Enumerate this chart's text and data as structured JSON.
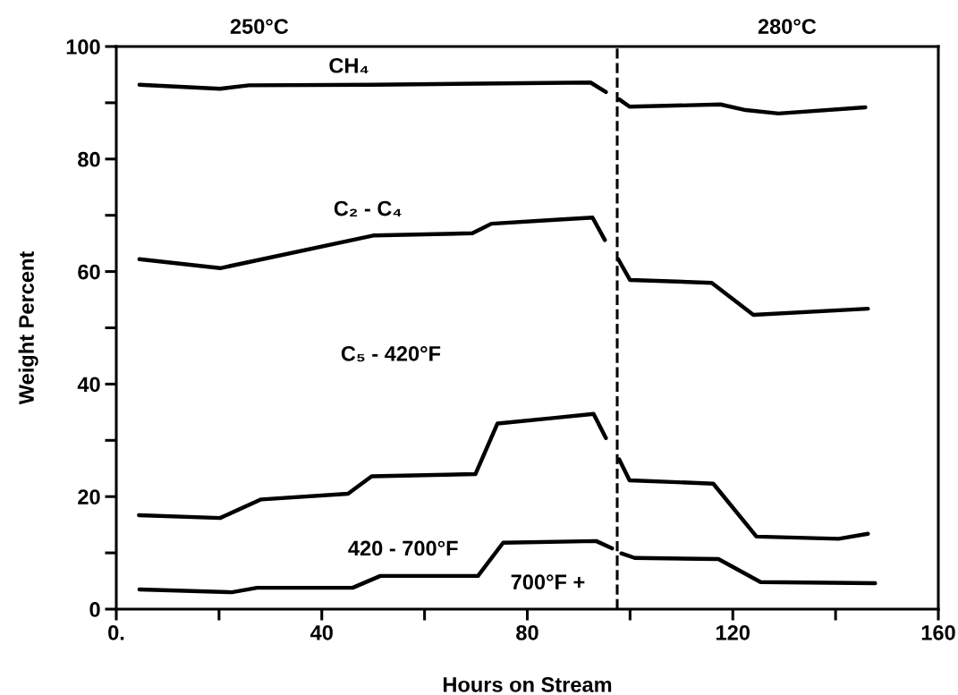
{
  "chart_data": {
    "type": "line",
    "xlabel": "Hours on Stream",
    "ylabel": "Weight Percent",
    "xlim": [
      0,
      160
    ],
    "ylim": [
      0,
      100
    ],
    "xticks": [
      {
        "value": 0,
        "label": "0."
      },
      {
        "value": 20,
        "label": null
      },
      40,
      {
        "value": 60,
        "label": null
      },
      80,
      {
        "value": 100,
        "label": null
      },
      120,
      {
        "value": 140,
        "label": null
      },
      160
    ],
    "yticks": [
      0,
      {
        "value": 10,
        "label": null
      },
      20,
      {
        "value": 30,
        "label": null
      },
      40,
      {
        "value": 50,
        "label": null
      },
      60,
      {
        "value": 70,
        "label": null
      },
      80,
      {
        "value": 90,
        "label": null
      },
      100
    ],
    "grid": false,
    "legend": false,
    "marker": "none",
    "line_style": "solid",
    "series": [
      {
        "color": "#000000",
        "x": [
          4.5,
          20.2,
          25.8,
          50,
          92.3,
          95.3,
          97.5,
          97.9,
          99.9,
          117.6,
          122.5,
          128.9,
          145.8
        ],
        "values": [
          93.2,
          92.5,
          93.1,
          93.2,
          93.6,
          91.9,
          null,
          90.6,
          89.3,
          89.7,
          88.7,
          88.1,
          89.2
        ]
      },
      {
        "color": "#000000",
        "x": [
          4.5,
          20.2,
          50,
          69.3,
          73,
          85.4,
          92.7,
          95.1,
          97.5,
          97.7,
          100,
          115.9,
          124,
          146.3
        ],
        "values": [
          62.2,
          60.6,
          66.4,
          66.8,
          68.5,
          69.2,
          69.6,
          65.6,
          null,
          62.2,
          58.5,
          58.0,
          52.3,
          53.4
        ]
      },
      {
        "color": "#000000",
        "x": [
          4.4,
          20.2,
          28.2,
          45.1,
          49.7,
          69.9,
          74.2,
          85.4,
          92.9,
          95.3,
          97.5,
          97.9,
          99.9,
          116.2,
          124.6,
          140.6,
          146.3
        ],
        "values": [
          16.7,
          16.2,
          19.5,
          20.5,
          23.6,
          24.0,
          33.0,
          34.0,
          34.7,
          30.4,
          null,
          26.6,
          22.9,
          22.3,
          12.9,
          12.5,
          13.4
        ]
      },
      {
        "color": "#000000",
        "x": [
          4.5,
          22.5,
          27.4,
          46,
          51.4,
          70.4,
          75.3,
          93.4,
          96.5,
          97.5,
          98.3,
          100.9,
          117.2,
          125.4,
          147.7
        ],
        "values": [
          3.5,
          3.0,
          3.8,
          3.8,
          5.9,
          5.9,
          11.8,
          12.1,
          10.8,
          null,
          9.9,
          9.1,
          8.9,
          4.8,
          4.6
        ]
      }
    ],
    "ref_lines": [
      {
        "axis": "x",
        "value": 97.5,
        "color": "#000000",
        "line_style": "dashed"
      }
    ],
    "annotations": [
      "250°C",
      "280°C",
      "CH₄",
      "C₂ - C₄",
      "C₅ - 420°F",
      "420 - 700°F",
      "700°F +"
    ]
  }
}
